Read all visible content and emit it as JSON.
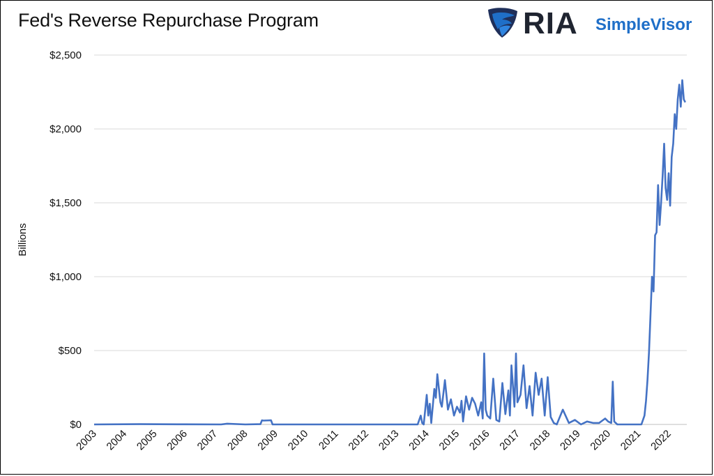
{
  "title": "Fed's Reverse Repurchase Program",
  "logo": {
    "brand": "RIA",
    "product": "SimpleVisor",
    "mark_icon": "eagle-shield-icon"
  },
  "colors": {
    "series": "#4472c4",
    "grid": "#d9d9d9",
    "brand_dark": "#1f2430",
    "brand_blue": "#1f6fc8"
  },
  "chart_data": {
    "type": "line",
    "title": "Fed's Reverse Repurchase Program",
    "ylabel": "Billions",
    "xlabel": "",
    "ylim": [
      0,
      2500
    ],
    "xlim": [
      2003,
      2022.6
    ],
    "y_ticks": [
      0,
      500,
      1000,
      1500,
      2000,
      2500
    ],
    "y_tick_labels": [
      "$0",
      "$500",
      "$1,000",
      "$1,500",
      "$2,000",
      "$2,500"
    ],
    "x_tick_labels": [
      "2003",
      "2004",
      "2005",
      "2006",
      "2007",
      "2008",
      "2009",
      "2010",
      "2011",
      "2012",
      "2013",
      "2014",
      "2015",
      "2016",
      "2017",
      "2018",
      "2019",
      "2020",
      "2021",
      "2022"
    ],
    "grid": true,
    "legend": "none",
    "series": [
      {
        "x": [
          2003,
          2004.5,
          2006,
          2007.2,
          2007.4,
          2008,
          2008.5,
          2008.55,
          2008.6,
          2008.85,
          2008.9,
          2009,
          2010,
          2011,
          2012,
          2013,
          2013.7,
          2013.8,
          2013.85,
          2013.9,
          2014.0,
          2014.05,
          2014.1,
          2014.15,
          2014.25,
          2014.3,
          2014.35,
          2014.45,
          2014.5,
          2014.6,
          2014.7,
          2014.8,
          2014.9,
          2015.0,
          2015.1,
          2015.15,
          2015.2,
          2015.3,
          2015.4,
          2015.5,
          2015.6,
          2015.7,
          2015.8,
          2015.85,
          2015.9,
          2015.95,
          2016.0,
          2016.1,
          2016.2,
          2016.3,
          2016.4,
          2016.5,
          2016.6,
          2016.7,
          2016.75,
          2016.8,
          2016.9,
          2016.95,
          2017.0,
          2017.1,
          2017.2,
          2017.3,
          2017.4,
          2017.5,
          2017.6,
          2017.7,
          2017.8,
          2017.9,
          2018.0,
          2018.1,
          2018.2,
          2018.3,
          2018.5,
          2018.7,
          2018.9,
          2019.1,
          2019.3,
          2019.5,
          2019.7,
          2019.9,
          2020.0,
          2020.1,
          2020.15,
          2020.2,
          2020.3,
          2020.6,
          2020.9,
          2021.1,
          2021.2,
          2021.25,
          2021.3,
          2021.35,
          2021.4,
          2021.45,
          2021.5,
          2021.55,
          2021.6,
          2021.65,
          2021.7,
          2021.75,
          2021.8,
          2021.85,
          2021.9,
          2021.95,
          2022.0,
          2022.05,
          2022.1,
          2022.15,
          2022.2,
          2022.25,
          2022.3,
          2022.35,
          2022.4,
          2022.45,
          2022.5,
          2022.55
        ],
        "values": [
          0,
          2,
          1,
          0,
          5,
          0,
          2,
          28,
          26,
          28,
          0,
          0,
          0,
          0,
          0,
          0,
          0,
          60,
          10,
          0,
          200,
          60,
          140,
          10,
          240,
          180,
          340,
          150,
          120,
          300,
          100,
          170,
          60,
          120,
          80,
          160,
          20,
          190,
          100,
          180,
          140,
          60,
          150,
          40,
          480,
          100,
          60,
          40,
          310,
          30,
          20,
          280,
          70,
          230,
          60,
          400,
          120,
          480,
          150,
          200,
          400,
          110,
          260,
          60,
          350,
          200,
          310,
          60,
          320,
          50,
          10,
          0,
          100,
          10,
          30,
          0,
          20,
          10,
          10,
          40,
          20,
          10,
          290,
          20,
          0,
          0,
          0,
          0,
          60,
          160,
          300,
          490,
          750,
          1000,
          900,
          1280,
          1300,
          1620,
          1350,
          1500,
          1680,
          1900,
          1600,
          1520,
          1700,
          1480,
          1810,
          1900,
          2100,
          2000,
          2200,
          2300,
          2150,
          2330,
          2200,
          2180
        ]
      }
    ]
  }
}
